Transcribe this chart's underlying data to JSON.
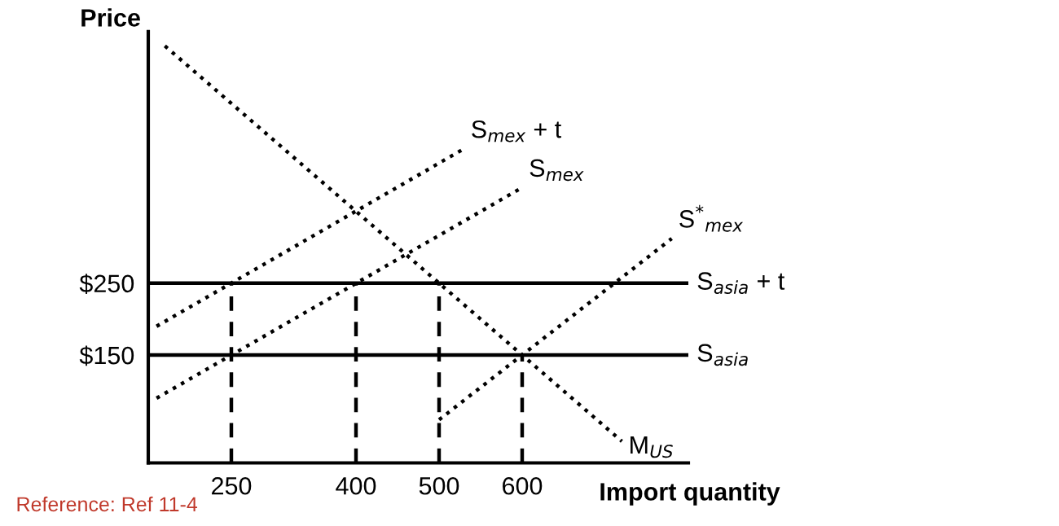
{
  "chart_data": {
    "type": "line",
    "xlabel": "Import quantity",
    "ylabel": "Price",
    "xlim": [
      150,
      800
    ],
    "ylim": [
      0,
      600
    ],
    "xticks": [
      250,
      400,
      500,
      600
    ],
    "yticks": [
      {
        "value": 150,
        "label": "$150"
      },
      {
        "value": 250,
        "label": "$250"
      }
    ],
    "grid": false,
    "line_style": "dotted",
    "series": [
      {
        "name": "S$_{mex}$ + t",
        "color": "#000000",
        "x": [
          160,
          530
        ],
        "values": [
          190,
          437
        ]
      },
      {
        "name": "S$_{mex}$",
        "color": "#000000",
        "x": [
          160,
          600
        ],
        "values": [
          90,
          383
        ]
      },
      {
        "name": "S$^{*}$$_{mex}$",
        "color": "#000000",
        "x": [
          500,
          600,
          780
        ],
        "values": [
          60,
          150,
          312
        ]
      },
      {
        "name": "M$_{US}$",
        "color": "#000000",
        "x": [
          170,
          500,
          600,
          720
        ],
        "values": [
          580,
          250,
          150,
          30
        ]
      },
      {
        "color": "#000000",
        "line_style": "dashed",
        "x": [
          250,
          250
        ],
        "values": [
          0,
          250
        ]
      },
      {
        "color": "#000000",
        "line_style": "dashed",
        "x": [
          400,
          400
        ],
        "values": [
          0,
          250
        ]
      },
      {
        "color": "#000000",
        "line_style": "dashed",
        "x": [
          500,
          500
        ],
        "values": [
          0,
          250
        ]
      },
      {
        "color": "#000000",
        "line_style": "dashed",
        "x": [
          600,
          600
        ],
        "values": [
          0,
          150
        ]
      }
    ],
    "ref_lines": [
      {
        "axis": "y",
        "value": 250,
        "label": "S$_{asia}$ + t",
        "color": "#000000",
        "line_style": "solid"
      },
      {
        "axis": "y",
        "value": 150,
        "label": "S$_{asia}$",
        "color": "#000000",
        "line_style": "solid"
      }
    ],
    "annotations": [
      "Reference: Ref 11-4"
    ]
  }
}
